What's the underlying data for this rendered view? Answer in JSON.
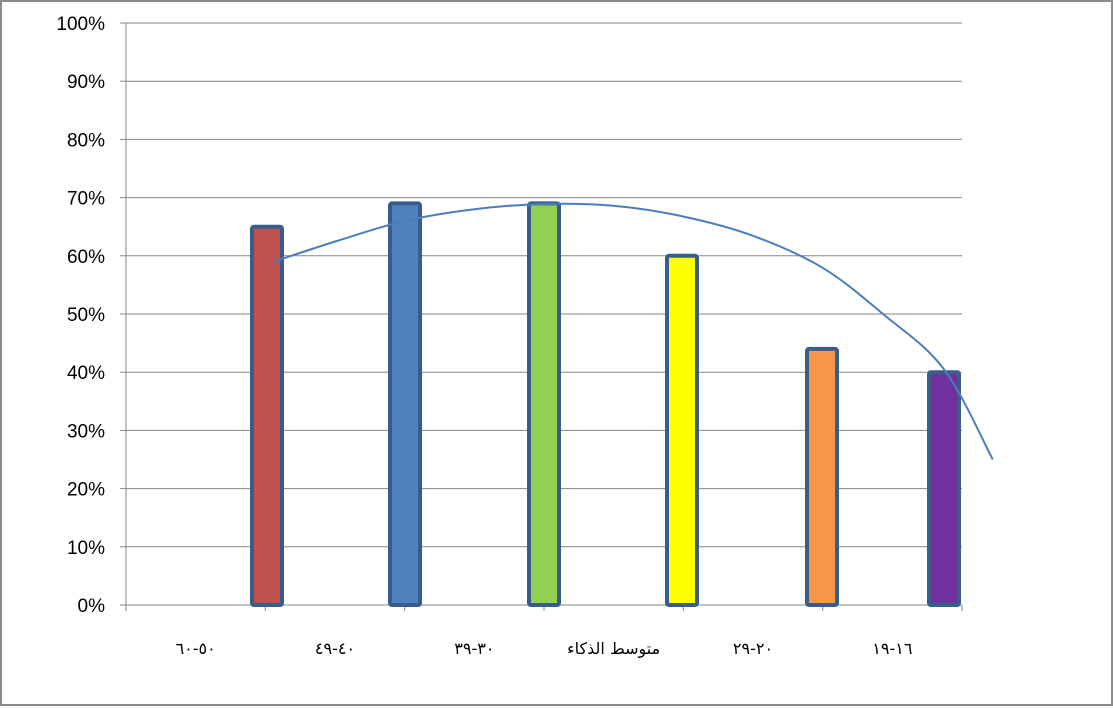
{
  "chart_data": {
    "type": "bar",
    "categories": [
      "٥٠-٦٠",
      "٤٠-٤٩",
      "٣٠-٣٩",
      "متوسط الذكاء",
      "٢٠-٢٩",
      "١٦-١٩"
    ],
    "values": [
      65,
      69,
      69,
      60,
      44,
      40
    ],
    "bar_colors": [
      "#c0504d",
      "#4f81bd",
      "#92d050",
      "#ffff00",
      "#f79646",
      "#7030a0"
    ],
    "bar_border_color": "#385d8a",
    "y_tick_labels": [
      "0%",
      "10%",
      "20%",
      "30%",
      "40%",
      "50%",
      "60%",
      "70%",
      "80%",
      "90%",
      "100%"
    ],
    "ylim": [
      0,
      100
    ],
    "y_unit": "%",
    "grid": true,
    "trendline": {
      "type": "polynomial",
      "color": "#4a7ebb",
      "x": [
        0.55,
        1.0,
        1.5,
        2.0,
        2.5,
        3.0,
        3.5,
        4.0,
        4.5,
        5.0,
        5.5,
        5.9
      ],
      "y": [
        59,
        62.5,
        66,
        68,
        68.9,
        68.6,
        66.8,
        63.5,
        58,
        50,
        40.5,
        25
      ]
    },
    "title": "",
    "xlabel": "",
    "ylabel": ""
  }
}
